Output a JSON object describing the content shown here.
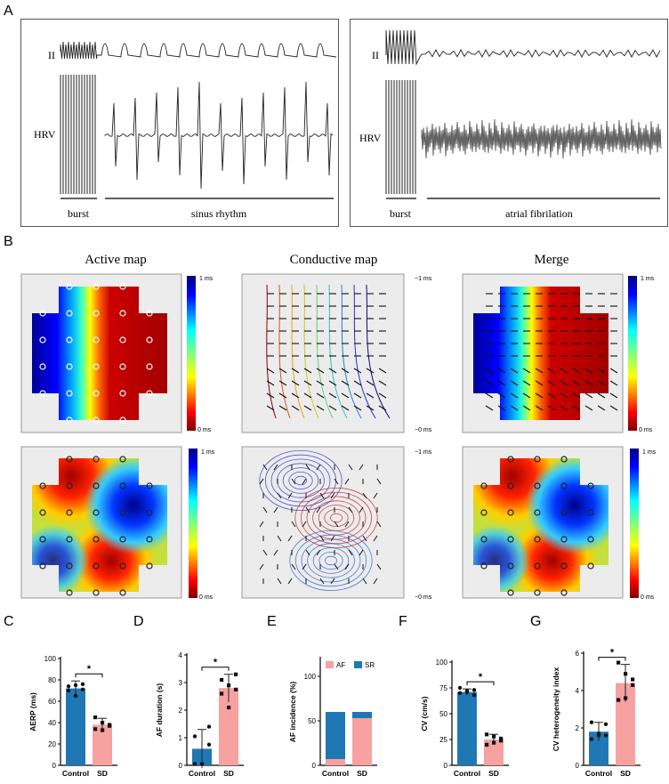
{
  "panels": {
    "A": "A",
    "B": "B",
    "C": "C",
    "D": "D",
    "E": "E",
    "F": "F",
    "G": "G"
  },
  "ecg": {
    "left": {
      "lead_top": "II",
      "lead_bottom": "HRV",
      "seg1": "burst",
      "seg2": "sinus rhythm"
    },
    "right": {
      "lead_top": "II",
      "lead_bottom": "HRV",
      "seg1": "burst",
      "seg2": "atrial fibrilation"
    }
  },
  "maps": {
    "titles": [
      "Active map",
      "Conductive map",
      "Merge"
    ],
    "scale_top": "1 ms",
    "scale_bottom": "0 ms",
    "scale_top_cond": "−1 ms",
    "scale_bottom_cond": "−0 ms"
  },
  "colors": {
    "control": "#1f78b4",
    "sd": "#f7a1a1",
    "ecg": "#222222"
  },
  "charts": [
    {
      "id": "C",
      "type": "bar",
      "ylabel": "AERP (ms)",
      "yticks": [
        "0",
        "20",
        "40",
        "60",
        "80",
        "100"
      ],
      "ylim": [
        0,
        100
      ],
      "categories": [
        "Control",
        "SD"
      ],
      "values": [
        72,
        38
      ],
      "err": [
        7,
        6
      ],
      "points": [
        [
          70,
          75,
          76,
          74,
          65,
          71
        ],
        [
          45,
          40,
          37,
          34,
          33,
          38
        ]
      ],
      "sig": "*"
    },
    {
      "id": "D",
      "type": "bar",
      "ylabel": "AF duration (s)",
      "yticks": [
        "0",
        "1",
        "2",
        "3",
        "4"
      ],
      "ylim": [
        0,
        4
      ],
      "categories": [
        "Control",
        "SD"
      ],
      "values": [
        0.6,
        2.8
      ],
      "err": [
        0.7,
        0.5
      ],
      "points": [
        [
          0.05,
          0.05,
          0.75,
          1.05,
          0.05,
          1.4
        ],
        [
          3.1,
          2.9,
          2.75,
          2.6,
          2.1,
          3.3
        ]
      ],
      "sig": "*"
    },
    {
      "id": "E",
      "type": "stacked-bar",
      "ylabel": "AF incidence (%)",
      "yticks": [
        "0",
        "50",
        "100"
      ],
      "ylim": [
        0,
        120
      ],
      "categories": [
        "Control",
        "SD"
      ],
      "series": [
        {
          "name": "AF",
          "values": [
            7,
            53
          ]
        },
        {
          "name": "SR",
          "values": [
            53,
            7
          ]
        }
      ]
    },
    {
      "id": "F",
      "type": "bar",
      "ylabel": "CV (cm/s)",
      "yticks": [
        "0",
        "25",
        "50",
        "75",
        "100"
      ],
      "ylim": [
        0,
        100
      ],
      "categories": [
        "Control",
        "SD"
      ],
      "values": [
        71,
        25
      ],
      "err": [
        3,
        5
      ],
      "points": [
        [
          75,
          72,
          68,
          70,
          71,
          73
        ],
        [
          30,
          28,
          24,
          20,
          22,
          26
        ]
      ],
      "sig": "*"
    },
    {
      "id": "G",
      "type": "bar",
      "ylabel": "CV heterogeneity index",
      "yticks": [
        "0",
        "2",
        "4",
        "6"
      ],
      "ylim": [
        0,
        6
      ],
      "categories": [
        "Control",
        "SD"
      ],
      "values": [
        1.8,
        4.4
      ],
      "err": [
        0.5,
        1.0
      ],
      "points": [
        [
          2.3,
          1.6,
          2.2,
          1.4,
          1.7,
          1.6
        ],
        [
          5.5,
          4.9,
          4.3,
          3.5,
          3.6,
          4.6
        ]
      ],
      "sig": "*"
    }
  ]
}
